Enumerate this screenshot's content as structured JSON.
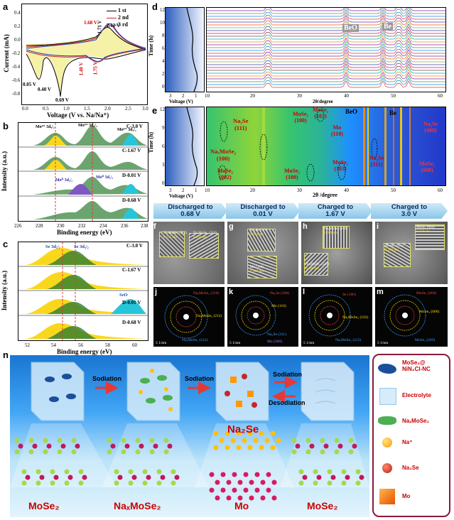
{
  "panels": {
    "a": "a",
    "b": "b",
    "c": "c",
    "d": "d",
    "e": "e",
    "f": "f",
    "g": "g",
    "h": "h",
    "i": "i",
    "j": "j",
    "k": "k",
    "l": "l",
    "m": "m",
    "n": "n"
  },
  "cv": {
    "ylabel": "Current (mA)",
    "xlabel": "Voltage (V vs. Na/Na⁺)",
    "legend": [
      "1 st",
      "2 nd",
      "3 rd"
    ],
    "legend_colors": [
      "#000000",
      "#d62728",
      "#1f3fbf"
    ],
    "yticks": [
      "0.4",
      "0.2",
      "0.0",
      "-0.2",
      "-0.4",
      "-0.6",
      "-0.8"
    ],
    "xticks": [
      "0.0",
      "0.5",
      "1.0",
      "1.5",
      "2.0",
      "2.5",
      "3.0"
    ],
    "annotations": {
      "v168": "1.68 V",
      "v171": "1.71 V",
      "v212": "2.12 V",
      "v140": "1.40 V",
      "v175": "1.75 V",
      "v005": "0.05 V",
      "v040": "0.40 V",
      "v069": "0.69 V"
    }
  },
  "xps_b": {
    "ylabel": "Intensity (a.u.)",
    "xlabel": "Binding energy (eV)",
    "xticks": [
      "226",
      "228",
      "230",
      "232",
      "234",
      "236",
      "238"
    ],
    "rows": [
      "C-3.0 V",
      "C-1.67 V",
      "D-0.01 V",
      "D-0.68 V"
    ],
    "labels": [
      "Mo⁴⁺ 3d₅/₂",
      "Mo⁴⁺ 3d₃/₂",
      "Mo⁶⁺ 3d₃/₂",
      "Mo⁰ 3d₅/₂",
      "Mo⁰ 3d₃/₂"
    ]
  },
  "xps_c": {
    "ylabel": "Intensity (a.u.)",
    "xlabel": "Binding energy (eV)",
    "xticks": [
      "52",
      "54",
      "56",
      "58",
      "60"
    ],
    "rows": [
      "C-3.0 V",
      "C-1.67 V",
      "D-0.01 V",
      "D-0.68 V"
    ],
    "labels": [
      "Se 3d₅/₂",
      "Se 3d₃/₂",
      "SeO"
    ]
  },
  "insitu_d": {
    "ylabel": "Time (h)",
    "vlabel": "Voltage (V)",
    "xlabel": "2θ/degree",
    "yticks": [
      "12",
      "10",
      "8",
      "6",
      "4",
      "2",
      "0"
    ],
    "vticks": [
      "3",
      "2",
      "1"
    ],
    "xticks": [
      "10",
      "20",
      "30",
      "40",
      "50",
      "60"
    ],
    "phase": [
      "BeO",
      "Be"
    ]
  },
  "insitu_e": {
    "ylabel": "Time (h)",
    "vlabel": "Voltage (V)",
    "xlabel": "2θ /degree",
    "yticks": [
      "12",
      "9",
      "6",
      "3",
      "0"
    ],
    "vticks": [
      "3",
      "2",
      "1"
    ],
    "xticks": [
      "10",
      "20",
      "30",
      "40",
      "50",
      "60"
    ],
    "labels": {
      "na2se111": "Na₂Se\n(111)",
      "naxmose2": "NaₓMoSe₂\n(100)",
      "mose2002": "MoSe₂\n(002)",
      "mose2100a": "MoSe₂\n(100)",
      "mose2103a": "MoSe₂\n(103)",
      "mose2100b": "MoSe₂\n(100)",
      "mo110": "Mo\n(110)",
      "mose2103b": "MoSe₂\n(103)",
      "na2se311": "Na₂Se\n(311)",
      "beo": "BeO",
      "be": "Be",
      "na2se400": "Na₂Se\n(400)",
      "mose2008": "MoSe₂\n(008)"
    }
  },
  "steps": [
    "Discharged to\n0.68 V",
    "Discharged to\n0.01 V",
    "Charged to\n1.67 V",
    "Charged to\n3.0 V"
  ],
  "tem": {
    "f": [
      "NaₓMoSe₂ (212)",
      "0.225 nm",
      "NaₓMoSe₂ (210)",
      "0.264 nm"
    ],
    "g": [
      "Na₂Se (311)",
      "0.204 nm",
      "Mo (110)",
      "0.220 nm"
    ],
    "h": [
      "NaₓMoSe₂ (310)",
      "0.204 nm",
      "NaₓMoSe₂ (221)",
      "0.194 nm"
    ],
    "i": [
      "MoSe₂ (004)",
      "0.323 nm",
      "MoSe₂ (105)",
      "0.199 nm"
    ]
  },
  "saed": {
    "j": [
      "NaₓMoSe₂ (310)",
      "NaₓMoSe₂ (212)",
      "NaₓMoSe₂ (312)"
    ],
    "k": [
      "Na₂Se (200)",
      "Mo (110)",
      "Na₂Se (311)",
      "Mo (200)"
    ],
    "l": [
      "Se (100)",
      "NaₓMoSe₂ (102)",
      "NaₓMoSe₂ (212)"
    ],
    "m": [
      "MoSe₂ (004)",
      "MoSe₂ (006)",
      "MoSe₂ (203)"
    ],
    "scale": "5 1/nm"
  },
  "scene": {
    "arrows": [
      "Sodiation",
      "Sodiation",
      "Sodiation",
      "Desodiation"
    ],
    "bottom": [
      "MoSe₂",
      "NaₓMoSe₂",
      "Mo",
      "MoSe₂"
    ],
    "na2se": "Na₂Se",
    "legend": [
      "MoSe₂@\nNiN₄Cl-NC",
      "Electrolyte",
      "NaₓMoSe₂",
      "Na⁺",
      "Na₂Se",
      "Mo"
    ]
  }
}
